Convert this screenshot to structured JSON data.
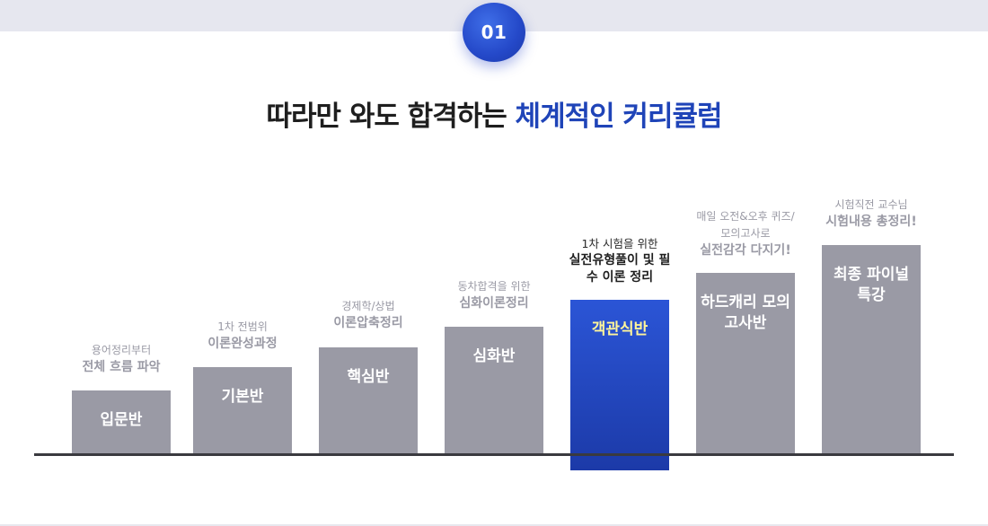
{
  "badge": "01",
  "headline": {
    "prefix": "따라만 와도 합격하는 ",
    "accent": "체계적인 커리큘럼"
  },
  "colors": {
    "accent": "#1f44b8",
    "bar": "#9a9aa5",
    "active_bar": "#2448c8",
    "active_label": "#fff59a"
  },
  "steps": [
    {
      "sub": "용어정리부터",
      "main": "전체 흐름 파악",
      "label": "입문반",
      "active": false
    },
    {
      "sub": "1차 전범위",
      "main": "이론완성과정",
      "label": "기본반",
      "active": false
    },
    {
      "sub": "경제학/상법",
      "main": "이론압축정리",
      "label": "핵심반",
      "active": false
    },
    {
      "sub": "동차합격을 위한",
      "main": "심화이론정리",
      "label": "심화반",
      "active": false
    },
    {
      "sub": "1차 시험을 위한",
      "main": "실전유형풀이 및 필수 이론 정리",
      "label": "객관식반",
      "active": true
    },
    {
      "sub": "매일 오전&오후 퀴즈/모의고사로",
      "main": "실전감각 다지기!",
      "label": "하드캐리 모의고사반",
      "active": false
    },
    {
      "sub": "시험직전 교수님",
      "main": "시험내용 총정리!",
      "label": "최종 파이널특강",
      "active": false
    }
  ]
}
